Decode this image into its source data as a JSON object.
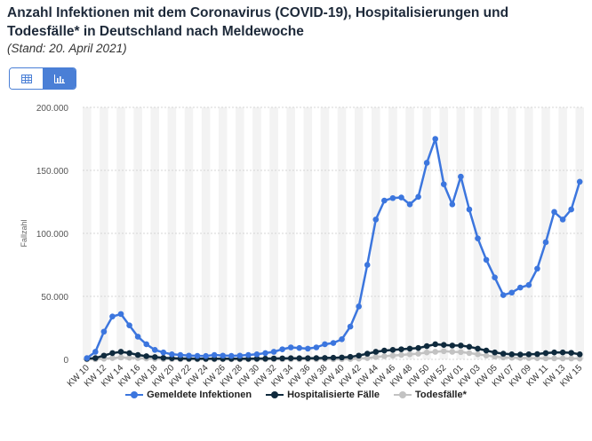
{
  "header": {
    "title": "Anzahl Infektionen mit dem Coronavirus (COVID-19), Hospitalisierungen und Todesfälle* in Deutschland nach Meldewoche",
    "subtitle": "(Stand: 20. April 2021)"
  },
  "view_toggle": {
    "table_icon": "table-icon",
    "chart_icon": "bar-chart-icon"
  },
  "chart_data": {
    "type": "line",
    "ylabel": "Fallzahl",
    "xlabel": "",
    "ylim": [
      0,
      200000
    ],
    "y_ticks": [
      "0",
      "50.000",
      "100.000",
      "150.000",
      "200.000"
    ],
    "grid": true,
    "legend_position": "bottom",
    "x": [
      "KW 10",
      "KW 11",
      "KW 12",
      "KW 13",
      "KW 14",
      "KW 15",
      "KW 16",
      "KW 17",
      "KW 18",
      "KW 19",
      "KW 20",
      "KW 21",
      "KW 22",
      "KW 23",
      "KW 24",
      "KW 25",
      "KW 26",
      "KW 27",
      "KW 28",
      "KW 29",
      "KW 30",
      "KW 31",
      "KW 32",
      "KW 33",
      "KW 34",
      "KW 35",
      "KW 36",
      "KW 37",
      "KW 38",
      "KW 39",
      "KW 40",
      "KW 41",
      "KW 42",
      "KW 43",
      "KW 44",
      "KW 45",
      "KW 46",
      "KW 47",
      "KW 48",
      "KW 49",
      "KW 50",
      "KW 51",
      "KW 52",
      "KW 53",
      "KW 01",
      "KW 02",
      "KW 03",
      "KW 04",
      "KW 05",
      "KW 06",
      "KW 07",
      "KW 08",
      "KW 09",
      "KW 10",
      "KW 11",
      "KW 12",
      "KW 13",
      "KW 14",
      "KW 15"
    ],
    "x_tick_labels": [
      "KW 10",
      "KW 12",
      "KW 14",
      "KW 16",
      "KW 18",
      "KW 20",
      "KW 22",
      "KW 24",
      "KW 26",
      "KW 28",
      "KW 30",
      "KW 32",
      "KW 34",
      "KW 36",
      "KW 38",
      "KW 40",
      "KW 42",
      "KW 44",
      "KW 46",
      "KW 48",
      "KW 50",
      "KW 52",
      "KW 01",
      "KW 03",
      "KW 05",
      "KW 07",
      "KW 09",
      "KW 11",
      "KW 13",
      "KW 15"
    ],
    "series": [
      {
        "name": "Gemeldete Infektionen",
        "color": "#3c76de",
        "values": [
          1000,
          6000,
          22000,
          34000,
          36000,
          27000,
          18000,
          12000,
          7500,
          5500,
          4000,
          3500,
          3000,
          2800,
          2700,
          3500,
          3000,
          2800,
          3000,
          3500,
          4000,
          5000,
          6000,
          8000,
          9500,
          9000,
          8500,
          9500,
          12000,
          13000,
          16000,
          26000,
          42000,
          75000,
          111000,
          126000,
          128000,
          128500,
          123000,
          129000,
          156000,
          175000,
          139000,
          123000,
          145000,
          119000,
          96000,
          79000,
          65000,
          51000,
          53000,
          57000,
          59000,
          72000,
          93000,
          117000,
          111000,
          119000,
          141000
        ]
      },
      {
        "name": "Hospitalisierte Fälle",
        "color": "#0f2a3d",
        "values": [
          500,
          1000,
          3000,
          5000,
          6000,
          5000,
          3500,
          2500,
          1800,
          1200,
          900,
          700,
          600,
          500,
          500,
          500,
          500,
          500,
          500,
          500,
          600,
          600,
          700,
          800,
          900,
          900,
          900,
          1000,
          1100,
          1300,
          1500,
          2000,
          3000,
          4500,
          6000,
          7000,
          7500,
          8000,
          8500,
          9000,
          10500,
          12000,
          11500,
          11000,
          11000,
          10000,
          8500,
          7000,
          5500,
          4500,
          4000,
          3800,
          4000,
          4200,
          5000,
          5500,
          5500,
          5200,
          4000
        ]
      },
      {
        "name": "Todesfälle*",
        "color": "#c2c2c2",
        "values": [
          0,
          100,
          500,
          1000,
          1500,
          1300,
          1000,
          700,
          400,
          250,
          150,
          100,
          80,
          60,
          50,
          50,
          40,
          30,
          30,
          30,
          30,
          30,
          40,
          40,
          40,
          40,
          50,
          60,
          80,
          100,
          150,
          300,
          600,
          1000,
          1800,
          2500,
          3000,
          3500,
          4000,
          4500,
          5500,
          6000,
          6500,
          6000,
          5800,
          5000,
          4000,
          3000,
          2200,
          1500,
          1300,
          1100,
          1000,
          900,
          800,
          800,
          700,
          700,
          600
        ]
      }
    ]
  }
}
